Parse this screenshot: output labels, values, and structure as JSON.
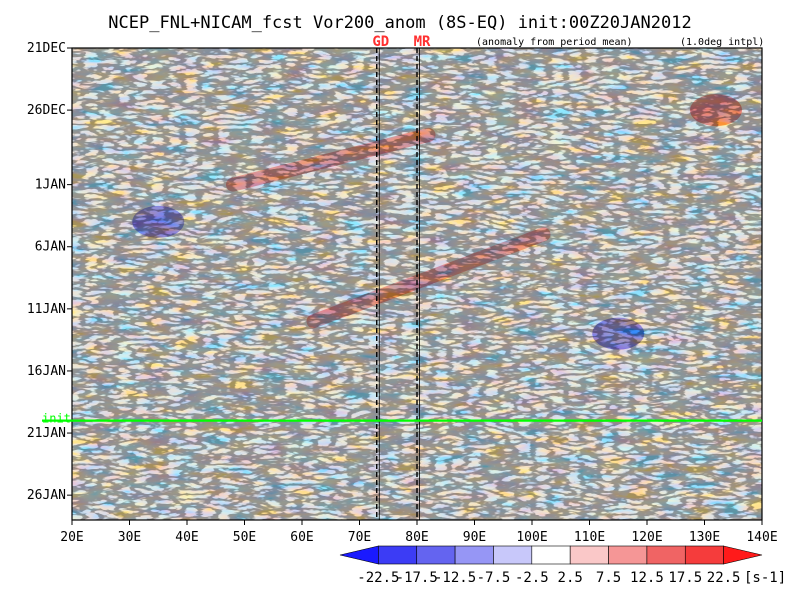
{
  "chart_data": {
    "type": "heatmap",
    "title": "NCEP_FNL+NICAM_fcst Vor200_anom (8S-EQ) init:00Z20JAN2012",
    "subtitle_left": "(anomaly from period mean)",
    "subtitle_right": "(1.0deg intpl)",
    "x_axis": {
      "label": "",
      "range": [
        20,
        140
      ],
      "ticks": [
        20,
        30,
        40,
        50,
        60,
        70,
        80,
        90,
        100,
        110,
        120,
        130,
        140
      ],
      "tick_labels": [
        "20E",
        "30E",
        "40E",
        "50E",
        "60E",
        "70E",
        "80E",
        "90E",
        "100E",
        "110E",
        "120E",
        "130E",
        "140E"
      ]
    },
    "y_axis": {
      "label": "",
      "start": "2011-12-21",
      "end": "2012-01-28",
      "ticks": [
        "2011-12-21",
        "2011-12-26",
        "2012-01-01",
        "2012-01-06",
        "2012-01-11",
        "2012-01-16",
        "2012-01-21",
        "2012-01-26"
      ],
      "tick_labels": [
        "21DEC",
        "26DEC",
        "1JAN",
        "6JAN",
        "11JAN",
        "16JAN",
        "21JAN",
        "26JAN"
      ],
      "direction": "time increases downward"
    },
    "init_line": {
      "label": "init",
      "date": "2012-01-20",
      "color": "#00ff00"
    },
    "markers": [
      {
        "label": "GD",
        "lon": 73,
        "color": "#ff3030"
      },
      {
        "label": "MR",
        "lon": 80,
        "color": "#ff3030"
      }
    ],
    "colorbar": {
      "levels": [
        -22.5,
        -17.5,
        -12.5,
        -7.5,
        -2.5,
        2.5,
        7.5,
        12.5,
        17.5,
        22.5
      ],
      "level_labels": [
        "-22.5",
        "-17.5",
        "-12.5",
        "-7.5",
        "-2.5",
        "2.5",
        "7.5",
        "12.5",
        "17.5",
        "22.5"
      ],
      "colors": [
        "#1a1aff",
        "#3c3cf5",
        "#6464f0",
        "#9696f5",
        "#c8c8fa",
        "#ffffff",
        "#fac8c8",
        "#f59696",
        "#f06464",
        "#f53c3c",
        "#ff1a1a"
      ],
      "unit": "[s-1]"
    },
    "features": [
      {
        "type": "positive_band",
        "from": {
          "lon": 48,
          "date": "2012-01-01"
        },
        "to": {
          "lon": 82,
          "date": "2011-12-28"
        }
      },
      {
        "type": "positive_band",
        "from": {
          "lon": 62,
          "date": "2012-01-12"
        },
        "to": {
          "lon": 102,
          "date": "2012-01-05"
        }
      },
      {
        "type": "negative_blob",
        "lon": 35,
        "date": "2012-01-04"
      },
      {
        "type": "negative_blob",
        "lon": 115,
        "date": "2012-01-13"
      },
      {
        "type": "positive_blob",
        "lon": 132,
        "date": "2011-12-26"
      }
    ]
  }
}
